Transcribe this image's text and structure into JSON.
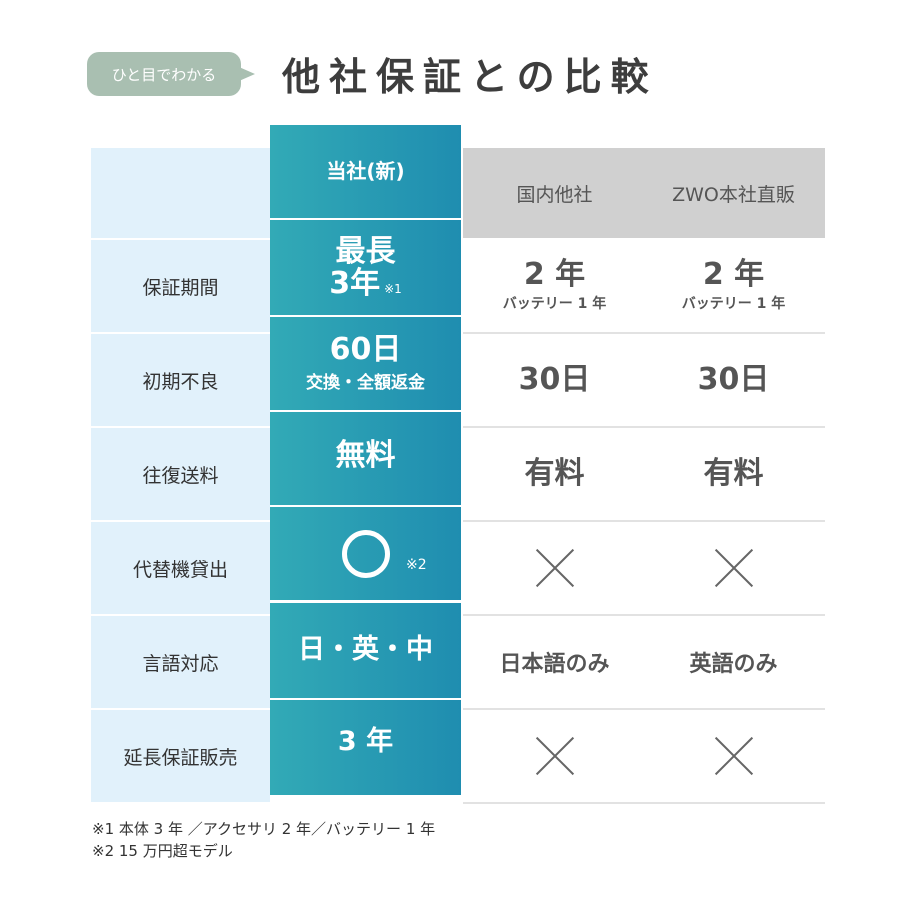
{
  "badge": "ひと目でわかる",
  "title": "他社保証との比較",
  "headers": {
    "ours": "当社(新)",
    "c1": "国内他社",
    "c2": "ZWO本社直販"
  },
  "rows": [
    {
      "label": "保証期間",
      "ours_main": "最長",
      "ours_main2": "3年",
      "ours_note": "※1",
      "c1_main": "2 年",
      "c1_sub": "バッテリー 1 年",
      "c2_main": "2 年",
      "c2_sub": "バッテリー 1 年"
    },
    {
      "label": "初期不良",
      "ours_main": "60日",
      "ours_sub": "交換・全額返金",
      "c1_main": "30日",
      "c2_main": "30日"
    },
    {
      "label": "往復送料",
      "ours_main": "無料",
      "c1_main": "有料",
      "c2_main": "有料"
    },
    {
      "label": "代替機貸出",
      "ours_icon": "circle-icon",
      "ours_note": "※2",
      "c1_icon": "cross-icon",
      "c2_icon": "cross-icon"
    },
    {
      "label": "言語対応",
      "ours_main": "日・英・中",
      "c1_main": "日本語のみ",
      "c2_main": "英語のみ"
    },
    {
      "label": "延長保証販売",
      "ours_main": "3 年",
      "c1_icon": "cross-icon",
      "c2_icon": "cross-icon"
    }
  ],
  "footnotes": [
    "※1 本体 3 年 ／アクセサリ 2 年／バッテリー 1 年",
    "※2 15 万円超モデル"
  ],
  "colors": {
    "accent": "#2a9db3",
    "label_bg": "#e1f1fb",
    "header_gray": "#d0d0d0",
    "badge": "#a9bfb1"
  }
}
